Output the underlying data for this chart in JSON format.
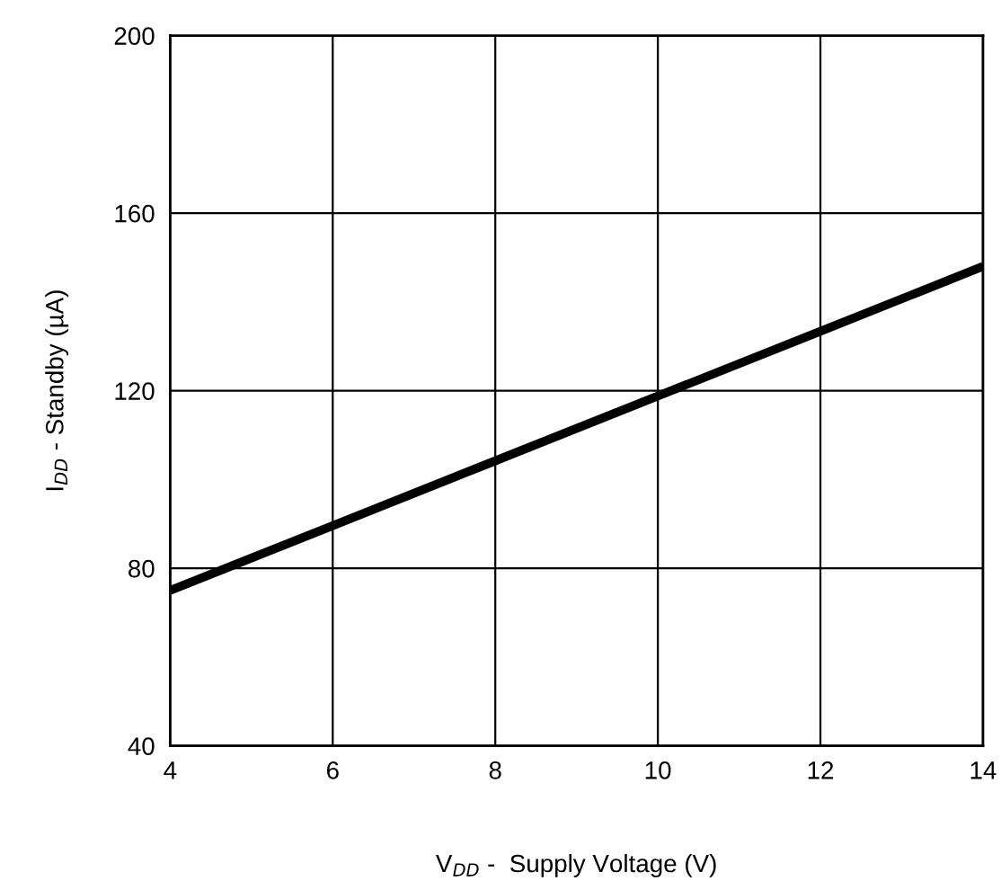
{
  "chart_data": {
    "type": "line",
    "xlabel": "V$_{DD}$ -  Supply Voltage (V)",
    "ylabel": "I$_{DD}$ - Standby (µA)",
    "x": [
      4,
      6,
      8,
      10,
      12,
      14
    ],
    "series": [
      {
        "color": "#000000",
        "values": [
          75,
          89.6,
          104.2,
          118.8,
          133.4,
          148
        ]
      }
    ],
    "xlim": [
      4,
      14
    ],
    "xticks": [
      4,
      6,
      8,
      10,
      12,
      14
    ],
    "ylim": [
      40,
      200
    ],
    "yticks": [
      40,
      80,
      120,
      160,
      200
    ],
    "grid": true,
    "marker": "none",
    "line_style": "solid",
    "legend": false
  }
}
